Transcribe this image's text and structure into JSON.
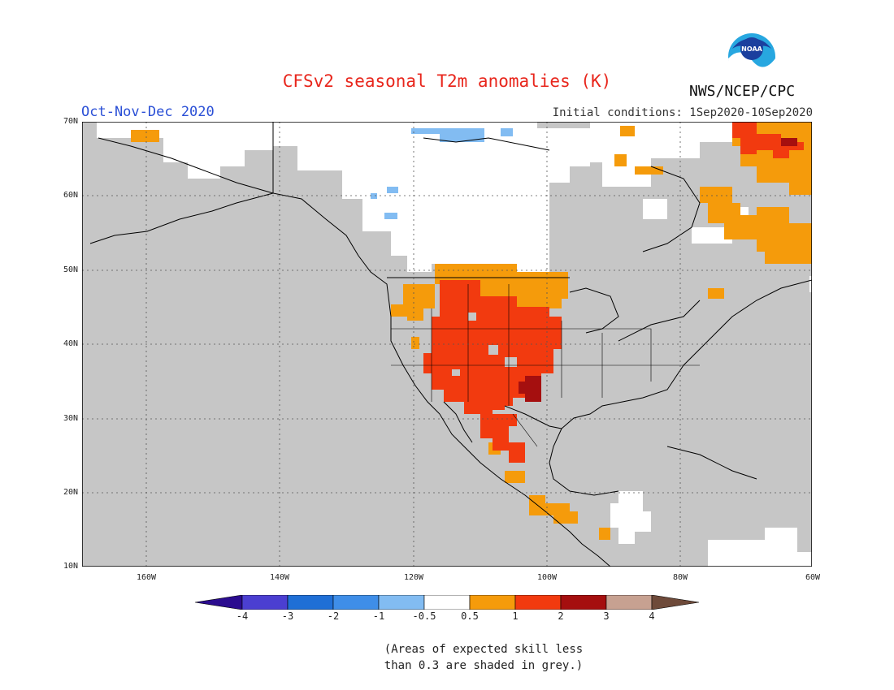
{
  "header": {
    "title": "CFSv2 seasonal T2m anomalies (K)",
    "season": "Oct-Nov-Dec 2020",
    "initial_conditions": "Initial conditions: 1Sep2020-10Sep2020",
    "agency": "NWS/NCEP/CPC",
    "logo_text": "NOAA"
  },
  "map": {
    "lat_ticks": [
      "70N",
      "60N",
      "50N",
      "40N",
      "30N",
      "20N",
      "10N"
    ],
    "lon_ticks": [
      "160W",
      "140W",
      "120W",
      "100W",
      "80W",
      "60W"
    ],
    "grey_meaning": "skill less than 0.3",
    "region": "North America"
  },
  "colorbar": {
    "labels": [
      "-4",
      "-3",
      "-2",
      "-1",
      "-0.5",
      "0.5",
      "1",
      "2",
      "3",
      "4"
    ],
    "colors": [
      "#2b0c8f",
      "#4b3fd1",
      "#1f6fd6",
      "#3f8ee8",
      "#82bcf2",
      "#ffffff",
      "#f59b0b",
      "#f23a0f",
      "#a50f0f",
      "#c7a191",
      "#6e4a3a"
    ]
  },
  "footnote": {
    "line1": "(Areas of expected skill less",
    "line2": "than 0.3 are shaded in grey.)"
  }
}
